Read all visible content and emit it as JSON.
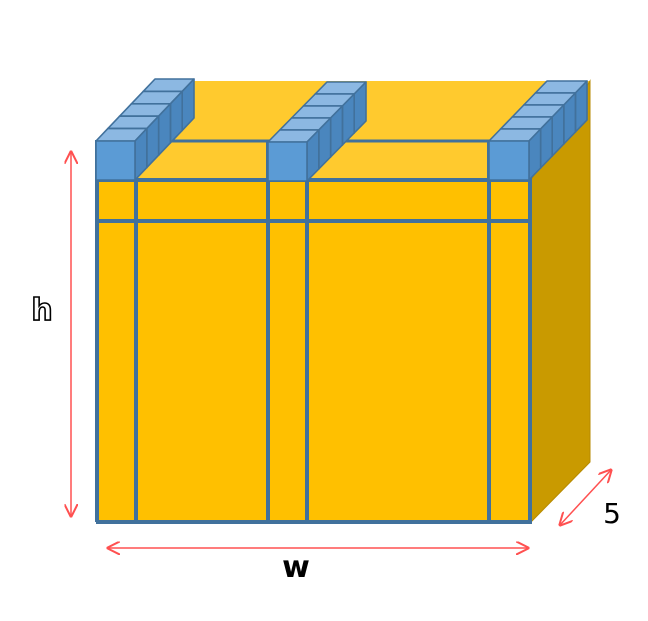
{
  "diagram": {
    "labels": {
      "height": "h",
      "width": "w",
      "depth": "5"
    },
    "colors": {
      "front_face": "#FFC000",
      "top_face": "#FFCA2E",
      "side_face": "#C99A00",
      "beam": "#5B9BD5",
      "beam_edge": "#41719C",
      "dimension_arrow": "#FF5050"
    }
  }
}
